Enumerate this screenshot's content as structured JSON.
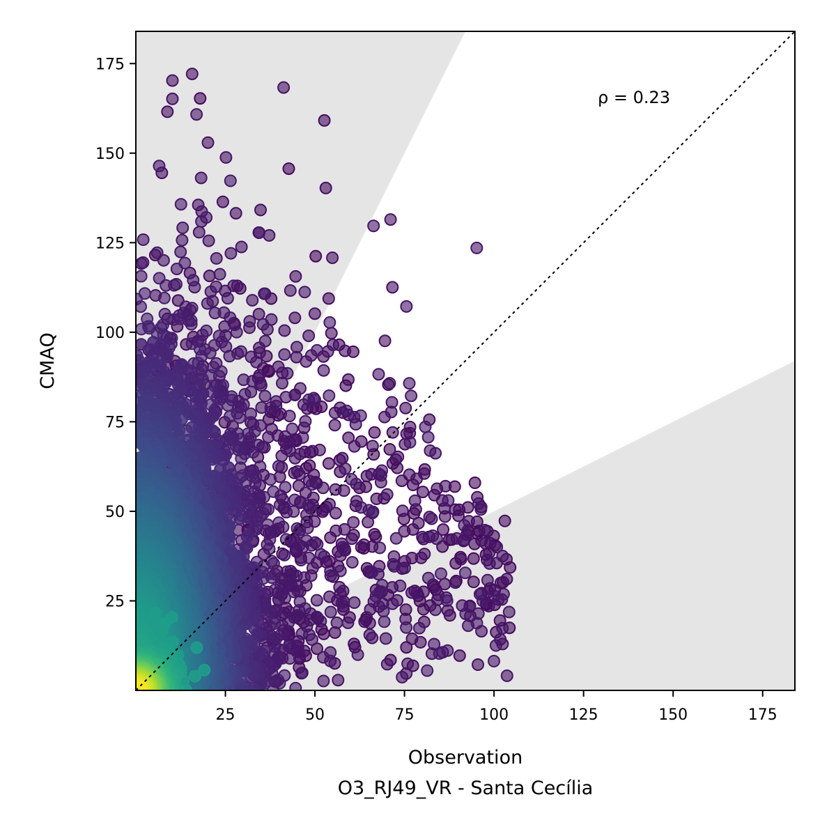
{
  "chart_data": {
    "type": "scatter",
    "xlabel": "Observation",
    "subtitle": "O3_RJ49_VR - Santa Cecília",
    "ylabel": "CMAQ",
    "annotation": "ρ = 0.23",
    "xlim": [
      0,
      184
    ],
    "ylim": [
      0,
      184
    ],
    "xticks": [
      25,
      50,
      75,
      100,
      125,
      150,
      175
    ],
    "yticks": [
      25,
      50,
      75,
      100,
      125,
      150,
      175
    ],
    "grid": false,
    "reference_line": "1:1 dotted",
    "shaded_band": "factor of 2 agreement region shaded light gray outside (y > 2x and y < x/2)",
    "colormap": "viridis (point density)",
    "colors": {
      "shade": "#e5e5e5",
      "low_density": "#440154",
      "high_density": "#fde725"
    },
    "n_points_described": "dense cloud concentrated at x 0–60, y 0–130, sparse points extending to x≈105"
  }
}
